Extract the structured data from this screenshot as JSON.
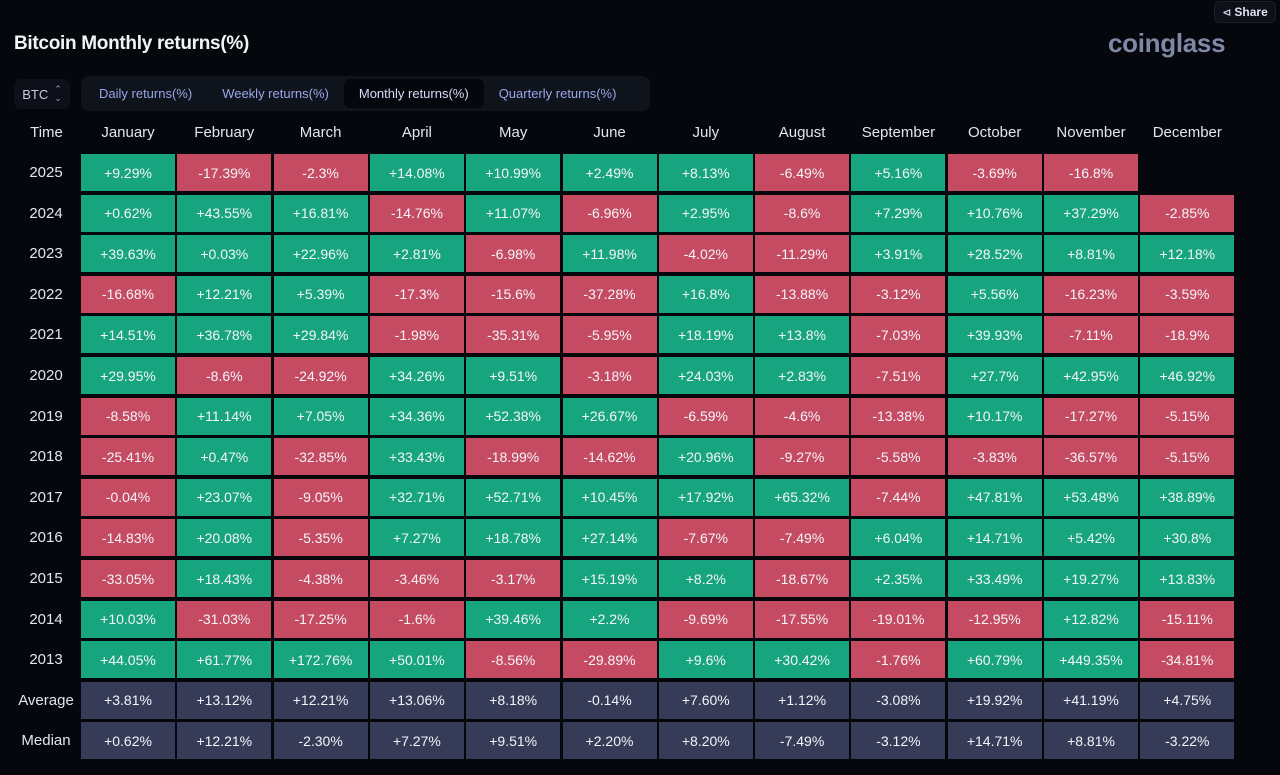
{
  "header": {
    "share_label": "Share",
    "title": "Bitcoin Monthly returns(%)",
    "logo": "coinglass"
  },
  "coin_select": {
    "value": "BTC"
  },
  "tabs": [
    {
      "label": "Daily returns(%)",
      "active": false
    },
    {
      "label": "Weekly returns(%)",
      "active": false
    },
    {
      "label": "Monthly returns(%)",
      "active": true
    },
    {
      "label": "Quarterly returns(%)",
      "active": false
    }
  ],
  "table": {
    "corner_label": "Time",
    "months": [
      "January",
      "February",
      "March",
      "April",
      "May",
      "June",
      "July",
      "August",
      "September",
      "October",
      "November",
      "December"
    ],
    "colors": {
      "positive": "#17a57f",
      "negative": "#c54b63",
      "stat": "#363b58"
    },
    "rows": [
      {
        "label": "2025",
        "type": "year",
        "values": [
          "+9.29%",
          "-17.39%",
          "-2.3%",
          "+14.08%",
          "+10.99%",
          "+2.49%",
          "+8.13%",
          "-6.49%",
          "+5.16%",
          "-3.69%",
          "-16.8%",
          ""
        ]
      },
      {
        "label": "2024",
        "type": "year",
        "values": [
          "+0.62%",
          "+43.55%",
          "+16.81%",
          "-14.76%",
          "+11.07%",
          "-6.96%",
          "+2.95%",
          "-8.6%",
          "+7.29%",
          "+10.76%",
          "+37.29%",
          "-2.85%"
        ]
      },
      {
        "label": "2023",
        "type": "year",
        "values": [
          "+39.63%",
          "+0.03%",
          "+22.96%",
          "+2.81%",
          "-6.98%",
          "+11.98%",
          "-4.02%",
          "-11.29%",
          "+3.91%",
          "+28.52%",
          "+8.81%",
          "+12.18%"
        ]
      },
      {
        "label": "2022",
        "type": "year",
        "values": [
          "-16.68%",
          "+12.21%",
          "+5.39%",
          "-17.3%",
          "-15.6%",
          "-37.28%",
          "+16.8%",
          "-13.88%",
          "-3.12%",
          "+5.56%",
          "-16.23%",
          "-3.59%"
        ]
      },
      {
        "label": "2021",
        "type": "year",
        "values": [
          "+14.51%",
          "+36.78%",
          "+29.84%",
          "-1.98%",
          "-35.31%",
          "-5.95%",
          "+18.19%",
          "+13.8%",
          "-7.03%",
          "+39.93%",
          "-7.11%",
          "-18.9%"
        ]
      },
      {
        "label": "2020",
        "type": "year",
        "values": [
          "+29.95%",
          "-8.6%",
          "-24.92%",
          "+34.26%",
          "+9.51%",
          "-3.18%",
          "+24.03%",
          "+2.83%",
          "-7.51%",
          "+27.7%",
          "+42.95%",
          "+46.92%"
        ]
      },
      {
        "label": "2019",
        "type": "year",
        "values": [
          "-8.58%",
          "+11.14%",
          "+7.05%",
          "+34.36%",
          "+52.38%",
          "+26.67%",
          "-6.59%",
          "-4.6%",
          "-13.38%",
          "+10.17%",
          "-17.27%",
          "-5.15%"
        ]
      },
      {
        "label": "2018",
        "type": "year",
        "values": [
          "-25.41%",
          "+0.47%",
          "-32.85%",
          "+33.43%",
          "-18.99%",
          "-14.62%",
          "+20.96%",
          "-9.27%",
          "-5.58%",
          "-3.83%",
          "-36.57%",
          "-5.15%"
        ]
      },
      {
        "label": "2017",
        "type": "year",
        "values": [
          "-0.04%",
          "+23.07%",
          "-9.05%",
          "+32.71%",
          "+52.71%",
          "+10.45%",
          "+17.92%",
          "+65.32%",
          "-7.44%",
          "+47.81%",
          "+53.48%",
          "+38.89%"
        ]
      },
      {
        "label": "2016",
        "type": "year",
        "values": [
          "-14.83%",
          "+20.08%",
          "-5.35%",
          "+7.27%",
          "+18.78%",
          "+27.14%",
          "-7.67%",
          "-7.49%",
          "+6.04%",
          "+14.71%",
          "+5.42%",
          "+30.8%"
        ]
      },
      {
        "label": "2015",
        "type": "year",
        "values": [
          "-33.05%",
          "+18.43%",
          "-4.38%",
          "-3.46%",
          "-3.17%",
          "+15.19%",
          "+8.2%",
          "-18.67%",
          "+2.35%",
          "+33.49%",
          "+19.27%",
          "+13.83%"
        ]
      },
      {
        "label": "2014",
        "type": "year",
        "values": [
          "+10.03%",
          "-31.03%",
          "-17.25%",
          "-1.6%",
          "+39.46%",
          "+2.2%",
          "-9.69%",
          "-17.55%",
          "-19.01%",
          "-12.95%",
          "+12.82%",
          "-15.11%"
        ]
      },
      {
        "label": "2013",
        "type": "year",
        "values": [
          "+44.05%",
          "+61.77%",
          "+172.76%",
          "+50.01%",
          "-8.56%",
          "-29.89%",
          "+9.6%",
          "+30.42%",
          "-1.76%",
          "+60.79%",
          "+449.35%",
          "-34.81%"
        ]
      },
      {
        "label": "Average",
        "type": "stat",
        "values": [
          "+3.81%",
          "+13.12%",
          "+12.21%",
          "+13.06%",
          "+8.18%",
          "-0.14%",
          "+7.60%",
          "+1.12%",
          "-3.08%",
          "+19.92%",
          "+41.19%",
          "+4.75%"
        ]
      },
      {
        "label": "Median",
        "type": "stat",
        "values": [
          "+0.62%",
          "+12.21%",
          "-2.30%",
          "+7.27%",
          "+9.51%",
          "+2.20%",
          "+8.20%",
          "-7.49%",
          "-3.12%",
          "+14.71%",
          "+8.81%",
          "-3.22%"
        ]
      }
    ]
  }
}
